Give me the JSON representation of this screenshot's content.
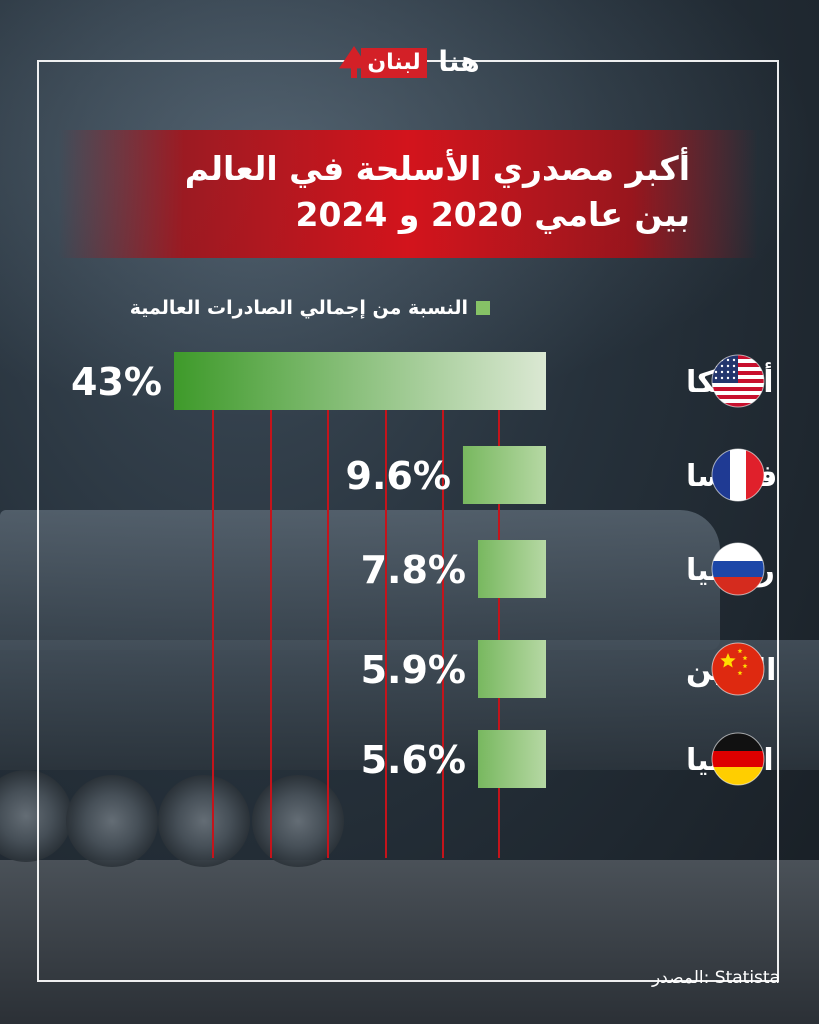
{
  "brand": {
    "logo_lebanon": "لبنان",
    "logo_huna": "هنا"
  },
  "colors": {
    "accent_red": "#d3141c",
    "bar_dark": "#3e9a2a",
    "bar_light": "#dbe8d3"
  },
  "chart_data": {
    "type": "bar",
    "orientation": "horizontal",
    "title": "أكبر مصدري الأسلحة في العالم بين عامي 2020 و 2024",
    "title_line1": "أكبر مصدري الأسلحة في العالم",
    "title_line2": "بين عامي 2020 و 2024",
    "legend": "النسبة من إجمالي الصادرات العالمية",
    "categories": [
      "أمريكا",
      "فرنسا",
      "روسيا",
      "الصين",
      "المانيا"
    ],
    "flags": [
      "usa-flag",
      "france-flag",
      "russia-flag",
      "china-flag",
      "germany-flag"
    ],
    "values": [
      43,
      9.6,
      7.8,
      5.9,
      5.6
    ],
    "value_labels": [
      "43%",
      "9.6%",
      "7.8%",
      "5.9%",
      "5.6%"
    ],
    "unit": "%",
    "grid": true
  },
  "source": "المصدر: Statista"
}
